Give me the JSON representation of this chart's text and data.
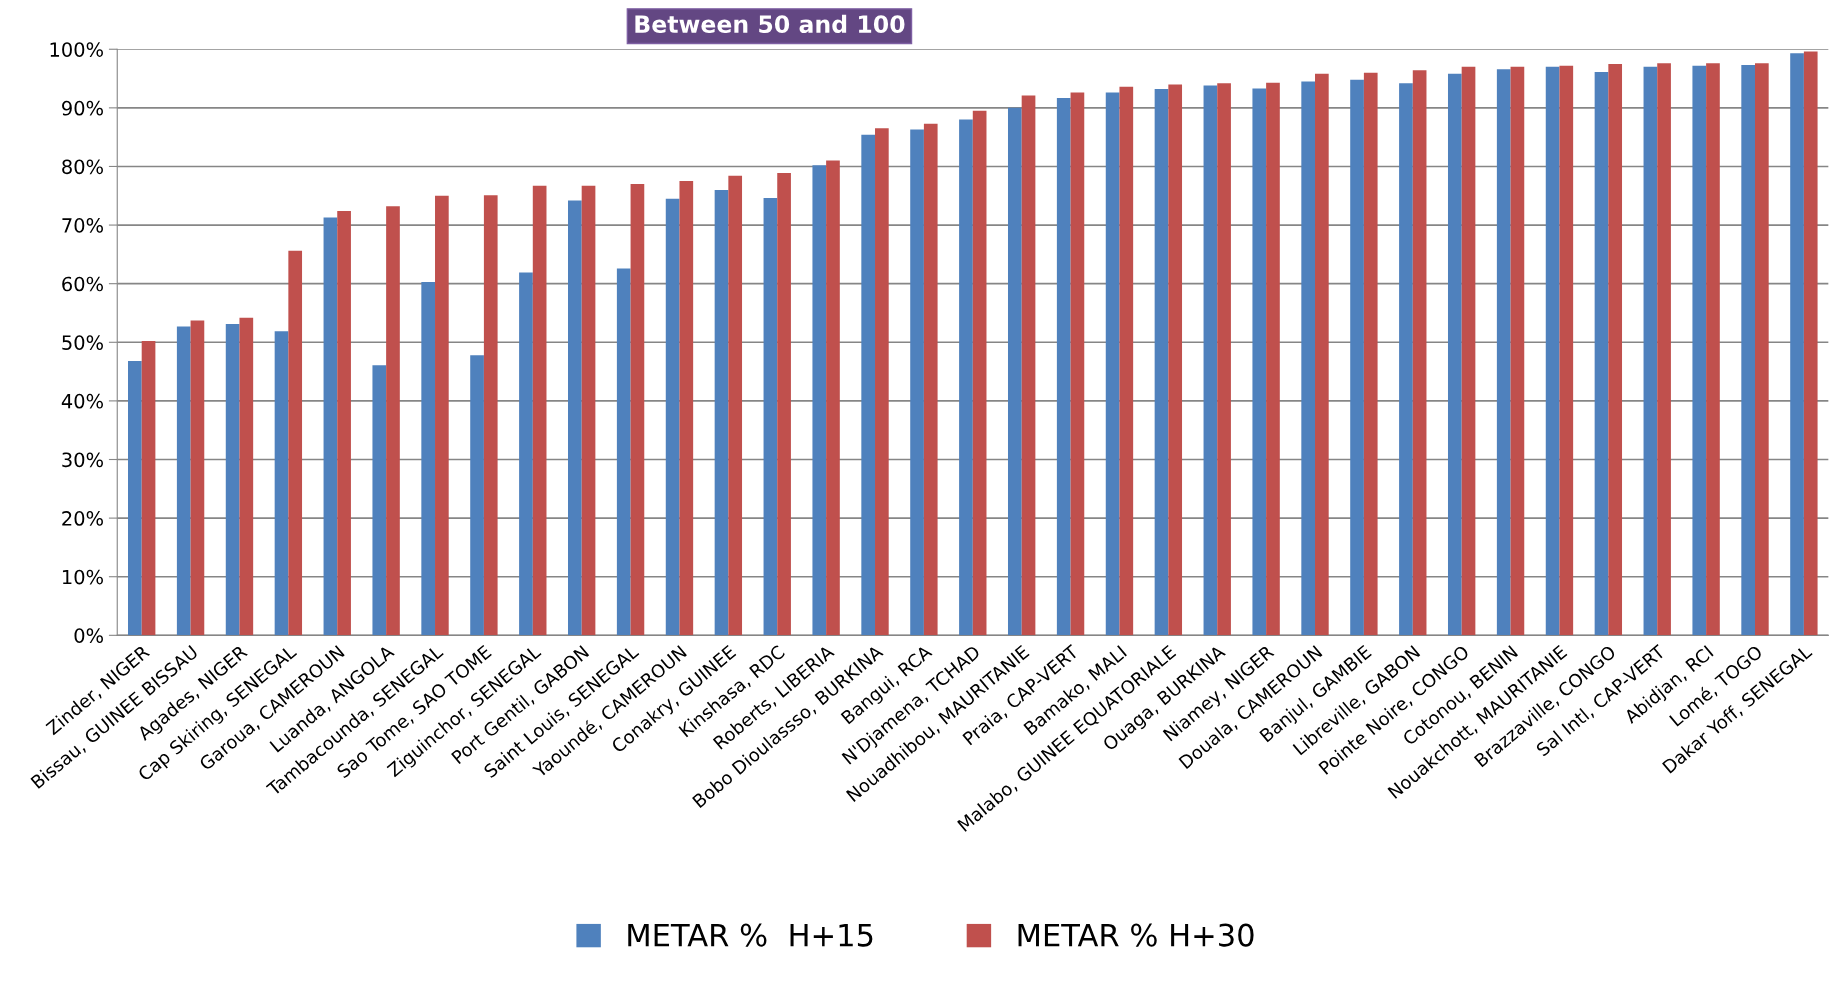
{
  "chart_data": {
    "type": "bar",
    "title": "Between 50 and 100",
    "categories": [
      "Zinder, NIGER",
      "Bissau, GUINEE BISSAU",
      "Agades, NIGER",
      "Cap Skiring, SENEGAL",
      "Garoua, CAMEROUN",
      "Luanda, ANGOLA",
      "Tambacounda, SENEGAL",
      "Sao Tome, SAO TOME",
      "Ziguinchor, SENEGAL",
      "Port Gentil, GABON",
      "Saint Louis, SENEGAL",
      "Yaoundé, CAMEROUN",
      "Conakry, GUINEE",
      "Kinshasa, RDC",
      "Roberts, LIBERIA",
      "Bobo Dioulassso, BURKINA",
      "Bangui, RCA",
      "N'Djamena, TCHAD",
      "Nouadhibou, MAURITANIE",
      "Praia, CAP-VERT",
      "Bamako, MALI",
      "Malabo, GUINEE EQUATORIALE",
      "Ouaga, BURKINA",
      "Niamey, NIGER",
      "Douala, CAMEROUN",
      "Banjul, GAMBIE",
      "Libreville, GABON",
      "Pointe Noire, CONGO",
      "Cotonou, BENIN",
      "Nouakchott, MAURITANIE",
      "Brazzaville, CONGO",
      "Sal Intl, CAP-VERT",
      "Abidjan, RCI",
      "Lomé, TOGO",
      "Dakar Yoff, SENEGAL"
    ],
    "series": [
      {
        "name": "METAR %  H+15",
        "color": "#4f81bd",
        "values": [
          46.8,
          52.7,
          53.1,
          51.9,
          71.3,
          46.1,
          60.3,
          47.8,
          61.9,
          74.2,
          62.6,
          74.5,
          76.0,
          74.6,
          80.2,
          85.4,
          86.3,
          88.0,
          90.0,
          91.7,
          92.6,
          93.2,
          93.8,
          93.3,
          94.5,
          94.8,
          94.2,
          95.8,
          96.6,
          97.0,
          96.1,
          97.0,
          97.2,
          97.3,
          99.3
        ]
      },
      {
        "name": "METAR % H+30",
        "color": "#c0504d",
        "values": [
          50.2,
          53.7,
          54.2,
          65.6,
          72.4,
          73.2,
          75.0,
          75.1,
          76.7,
          76.7,
          77.0,
          77.5,
          78.4,
          78.9,
          81.0,
          86.5,
          87.3,
          89.5,
          92.1,
          92.6,
          93.6,
          94.0,
          94.2,
          94.3,
          95.8,
          96.0,
          96.4,
          97.0,
          97.0,
          97.2,
          97.5,
          97.6,
          97.6,
          97.6,
          99.6
        ]
      }
    ],
    "ylim": [
      0,
      100
    ],
    "yticks": [
      {
        "value": 0,
        "label": "0%"
      },
      {
        "value": 10,
        "label": "10%"
      },
      {
        "value": 20,
        "label": "20%"
      },
      {
        "value": 30,
        "label": "30%"
      },
      {
        "value": 40,
        "label": "40%"
      },
      {
        "value": 50,
        "label": "50%"
      },
      {
        "value": 60,
        "label": "60%"
      },
      {
        "value": 70,
        "label": "70%"
      },
      {
        "value": 80,
        "label": "80%"
      },
      {
        "value": 90,
        "label": "90%"
      },
      {
        "value": 100,
        "label": "100%"
      }
    ],
    "grid": "y",
    "legend": "bottom"
  }
}
